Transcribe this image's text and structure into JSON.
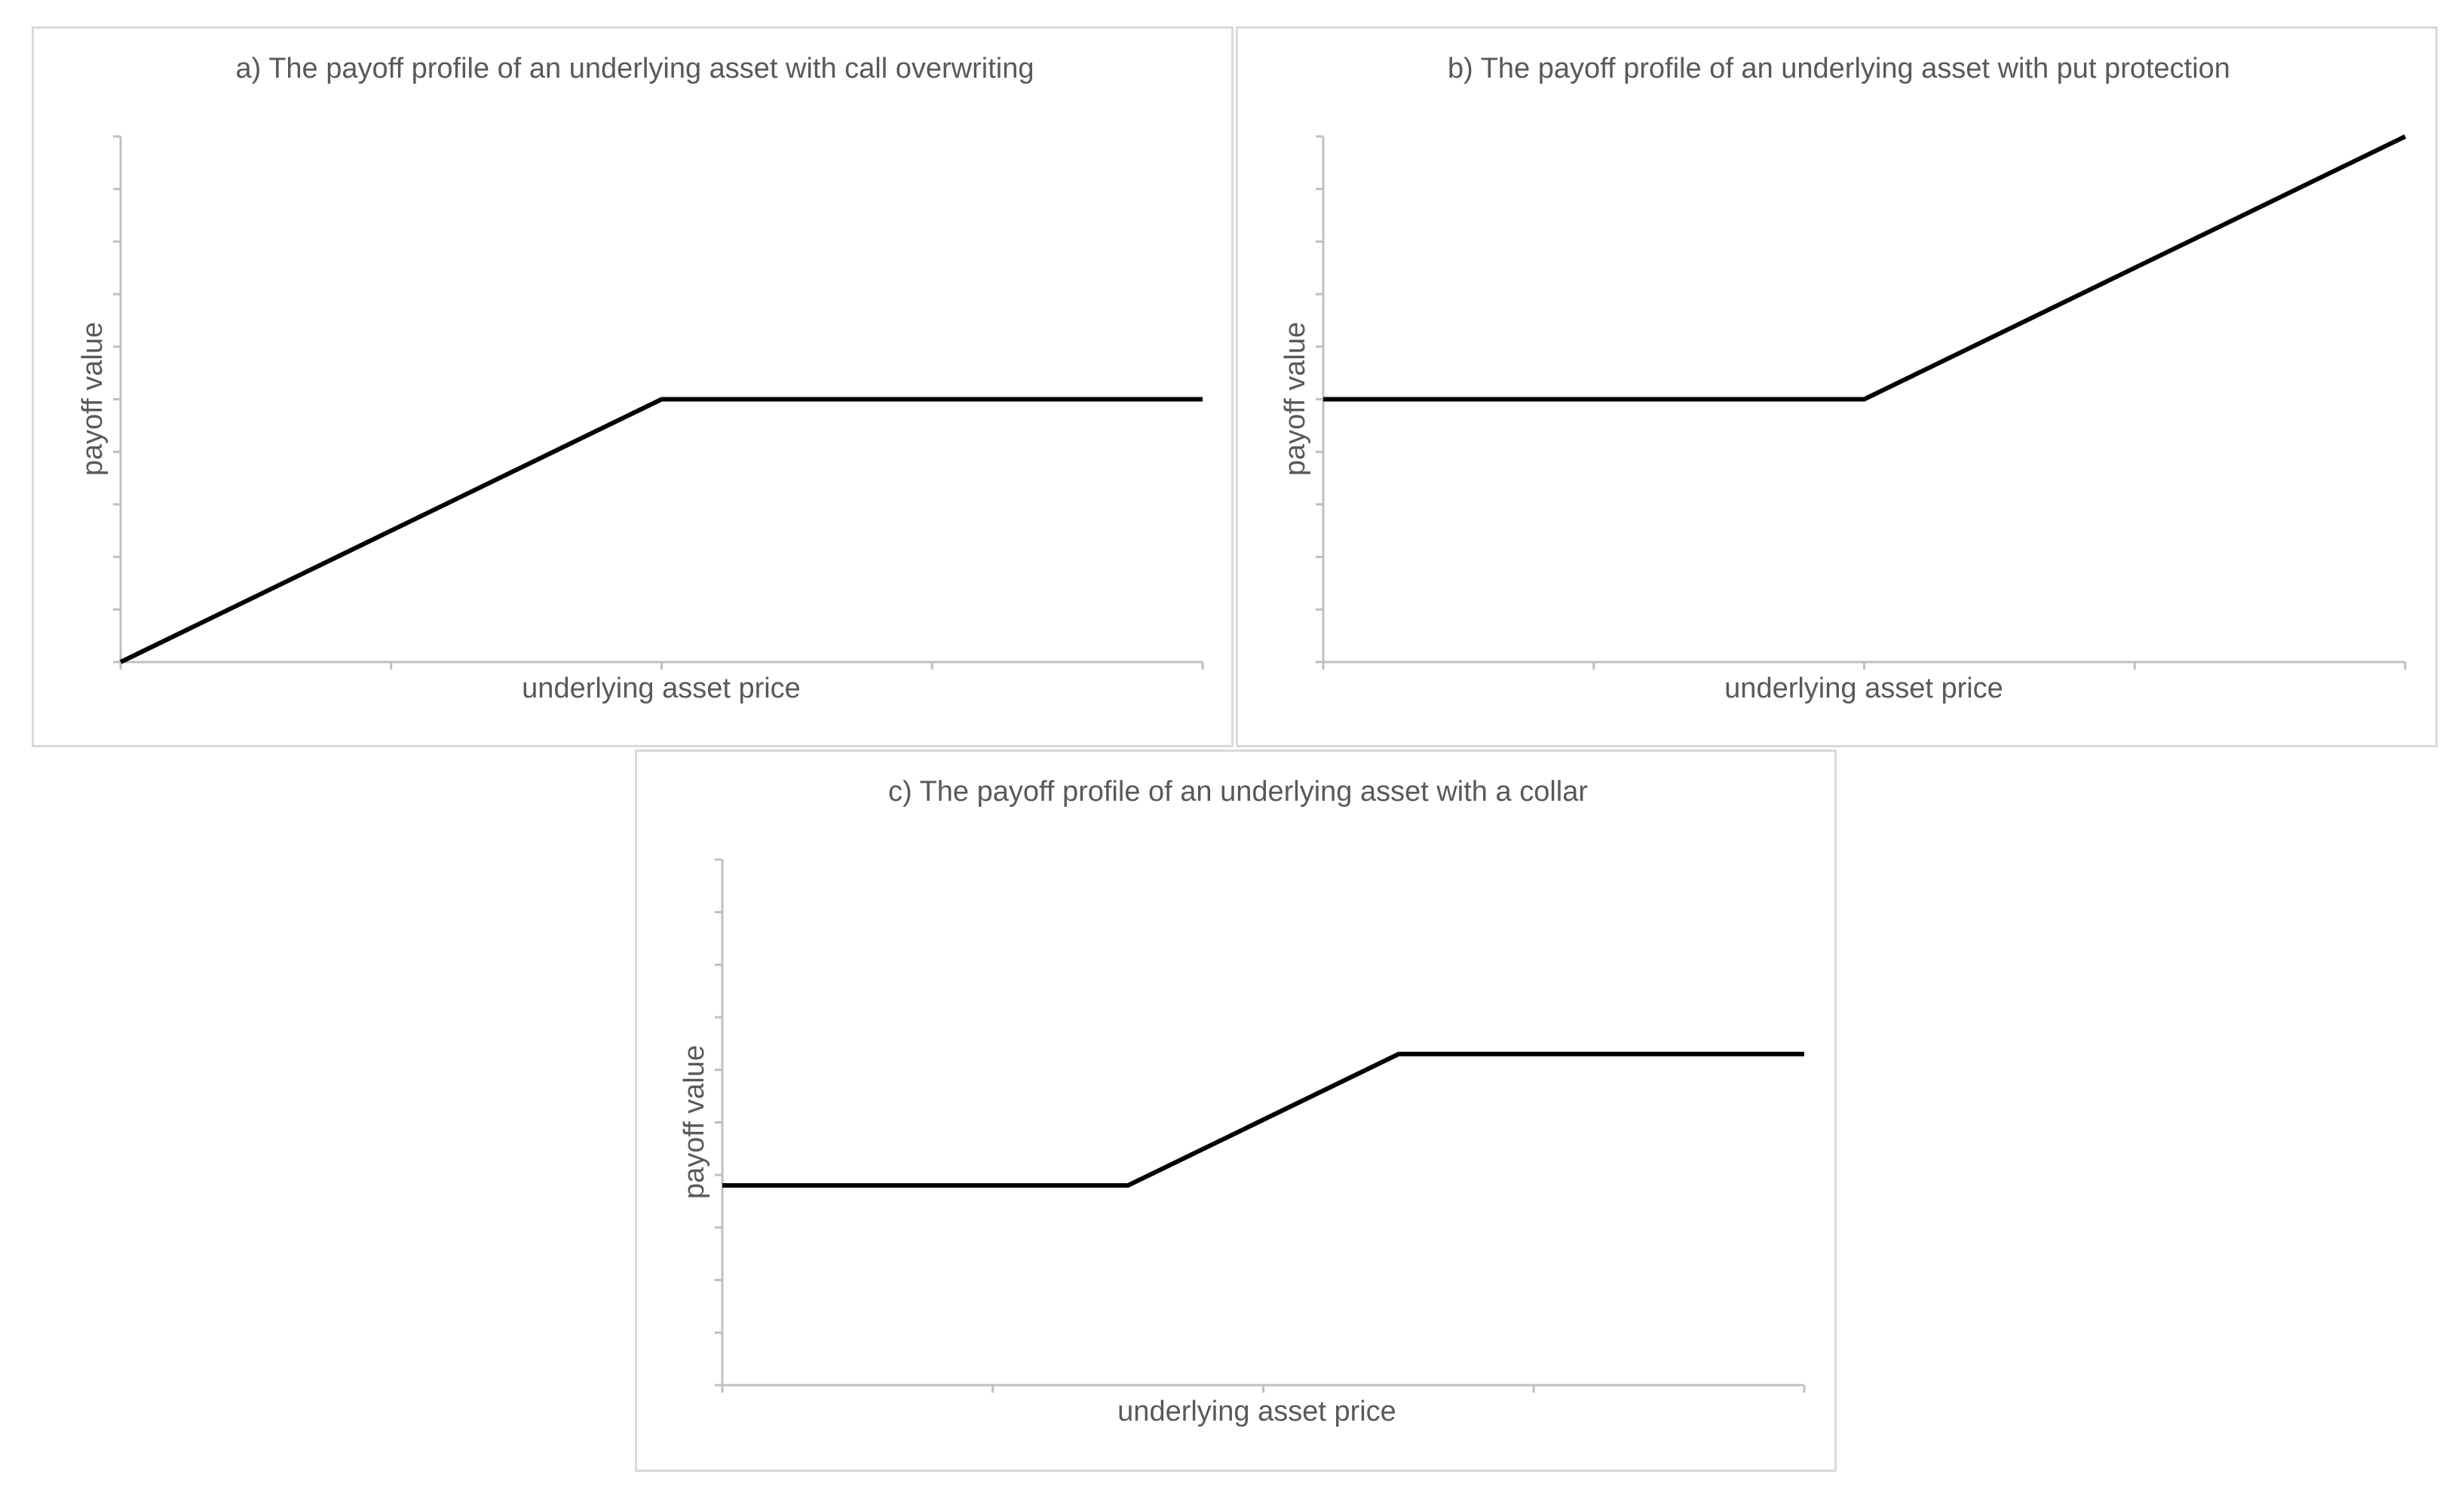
{
  "chart_data": [
    {
      "type": "line",
      "title": "a) The payoff profile of an underlying asset with call overwriting",
      "xlabel": "underlying asset price",
      "ylabel": "payoff value",
      "xlim": [
        0,
        4
      ],
      "ylim": [
        0,
        10
      ],
      "x_tick_count": 4,
      "y_tick_count": 10,
      "grid": false,
      "series": [
        {
          "x": [
            0,
            2,
            4
          ],
          "values": [
            0,
            5,
            5
          ]
        }
      ]
    },
    {
      "type": "line",
      "title": "b) The payoff profile of an underlying asset with put protection",
      "xlabel": "underlying asset price",
      "ylabel": "payoff value",
      "xlim": [
        0,
        4
      ],
      "ylim": [
        0,
        10
      ],
      "x_tick_count": 4,
      "y_tick_count": 10,
      "grid": false,
      "series": [
        {
          "x": [
            0,
            2,
            4
          ],
          "values": [
            5,
            5,
            10
          ]
        }
      ]
    },
    {
      "type": "line",
      "title": "c) The payoff profile of an underlying asset with a collar",
      "xlabel": "underlying asset price",
      "ylabel": "payoff value",
      "xlim": [
        0,
        4
      ],
      "ylim": [
        0,
        10
      ],
      "x_tick_count": 4,
      "y_tick_count": 10,
      "grid": false,
      "series": [
        {
          "x": [
            0,
            1.5,
            2.5,
            4
          ],
          "values": [
            3.8,
            3.8,
            6.3,
            6.3
          ]
        }
      ]
    }
  ],
  "colors": {
    "line": "#000000",
    "axis": "#bfbfbf",
    "text": "#595959",
    "border": "#d9d9d9"
  }
}
